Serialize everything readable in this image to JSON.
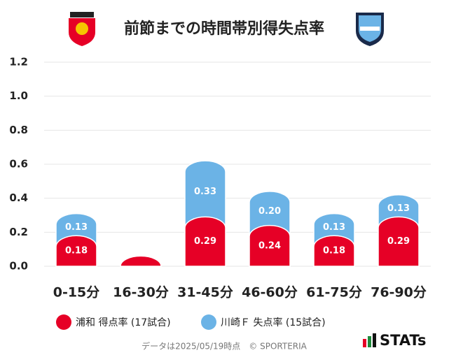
{
  "chart_data": {
    "type": "bar",
    "title": "前節までの時間帯別得失点率",
    "categories": [
      "0-15分",
      "16-30分",
      "31-45分",
      "46-60分",
      "61-75分",
      "76-90分"
    ],
    "series": [
      {
        "name": "浦和 得点率 (17試合)",
        "color": "#e60026",
        "values": [
          0.18,
          0.06,
          0.29,
          0.24,
          0.18,
          0.29
        ],
        "value_labels": [
          "0.18",
          null,
          "0.29",
          "0.24",
          "0.18",
          "0.29"
        ]
      },
      {
        "name": "川崎Ｆ 失点率 (15試合)",
        "color": "#6bb3e6",
        "values": [
          0.13,
          0,
          0.33,
          0.2,
          0.13,
          0.13
        ],
        "value_labels": [
          "0.13",
          null,
          "0.33",
          "0.20",
          "0.13",
          "0.13"
        ]
      }
    ],
    "stacked": true,
    "ylim": [
      0,
      1.2
    ],
    "yticks": [
      {
        "value": 0,
        "label": "0.0"
      },
      {
        "value": 0.2,
        "label": "0.2"
      },
      {
        "value": 0.4,
        "label": "0.4"
      },
      {
        "value": 0.6,
        "label": "0.6"
      },
      {
        "value": 0.8,
        "label": "0.8"
      },
      {
        "value": 1.0,
        "label": "1.0"
      },
      {
        "value": 1.2,
        "label": "1.2"
      }
    ],
    "grid": true,
    "footnote": "データは2025/05/19時点　© SPORTERIA",
    "logo": "STATs"
  }
}
